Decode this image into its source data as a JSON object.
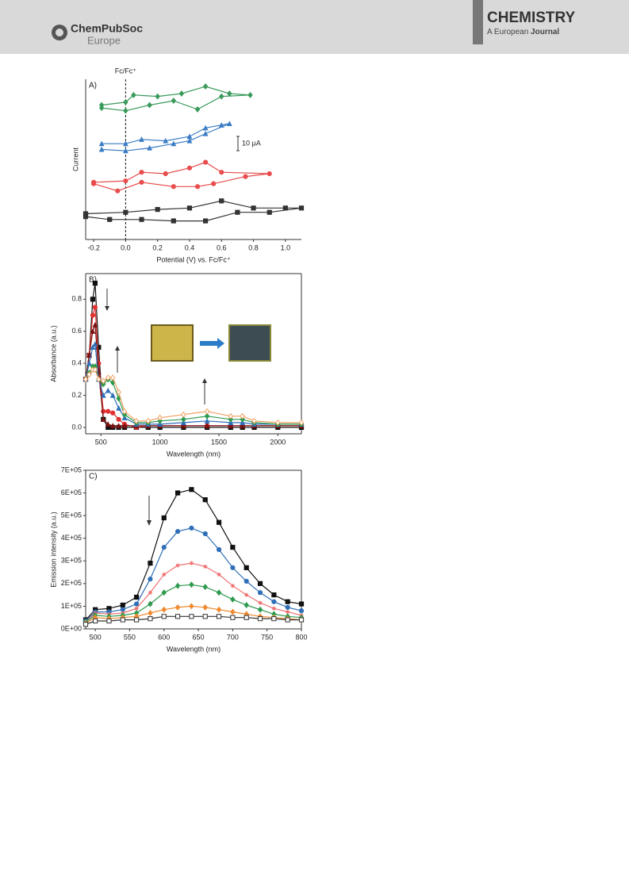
{
  "header": {
    "society": "ChemPubSoc",
    "region": "Europe",
    "journal": "CHEMISTRY",
    "tagline_a": "A European",
    "tagline_b": "Journal"
  },
  "chart_data": [
    {
      "type": "line",
      "label": "A)",
      "xlabel": "Potential (V) vs. Fc/Fc⁺",
      "ylabel": "Current",
      "xlim": [
        -0.25,
        1.1
      ],
      "xticks": [
        -0.2,
        {
          "value": 0,
          "label": "0.0"
        },
        0.2,
        0.4,
        0.6,
        0.8,
        {
          "value": 1,
          "label": "1.0"
        }
      ],
      "ylim": [
        0,
        112
      ],
      "ref_line": {
        "value": 0,
        "label": "Fc/Fc⁺"
      },
      "scale_bar": {
        "value": 10,
        "label": "10 μA"
      },
      "series": [
        {
          "color": "#3a9a5c",
          "marker": "diamond",
          "x": [
            -0.15,
            0.0,
            0.05,
            0.2,
            0.35,
            0.5,
            0.65,
            0.78,
            0.6,
            0.45,
            0.3,
            0.15,
            0.0,
            -0.15
          ],
          "values": [
            94,
            96,
            101,
            100,
            102,
            107,
            102,
            101,
            100,
            91,
            97,
            94,
            90,
            92
          ]
        },
        {
          "color": "#3a7cc4",
          "marker": "triangle",
          "x": [
            -0.15,
            0.0,
            0.1,
            0.25,
            0.4,
            0.5,
            0.6,
            0.65,
            0.5,
            0.4,
            0.3,
            0.15,
            0.0,
            -0.15
          ],
          "values": [
            67,
            67,
            70,
            69,
            72,
            78,
            80,
            81,
            74,
            69,
            67,
            64,
            62,
            63
          ]
        },
        {
          "color": "#e84c4c",
          "marker": "circle",
          "x": [
            -0.2,
            0.0,
            0.1,
            0.25,
            0.4,
            0.5,
            0.6,
            0.9,
            0.75,
            0.55,
            0.45,
            0.3,
            0.1,
            -0.05,
            -0.2
          ],
          "values": [
            40,
            41,
            47,
            46,
            50,
            54,
            47,
            46,
            44,
            39,
            37,
            37,
            40,
            34,
            39
          ]
        },
        {
          "color": "#333333",
          "marker": "square",
          "x": [
            -0.25,
            0.0,
            0.2,
            0.4,
            0.6,
            0.8,
            1.0,
            1.1,
            0.9,
            0.7,
            0.5,
            0.3,
            0.1,
            -0.1,
            -0.25
          ],
          "values": [
            18,
            19,
            21,
            22,
            27,
            22,
            22,
            22,
            19,
            19,
            13,
            13,
            14,
            14,
            16
          ]
        }
      ]
    },
    {
      "type": "line",
      "label": "B)",
      "xlabel": "Wavelength (nm)",
      "ylabel": "Absorbance (a.u.)",
      "xlim": [
        370,
        2200
      ],
      "xticks": [
        500,
        1000,
        1500,
        2000
      ],
      "ylim": [
        -0.04,
        0.96
      ],
      "yticks": [
        {
          "value": 0,
          "label": "0.0"
        },
        0.2,
        0.4,
        0.6,
        0.8
      ],
      "x": [
        370,
        400,
        430,
        450,
        480,
        520,
        560,
        600,
        650,
        700,
        800,
        900,
        1000,
        1200,
        1400,
        1600,
        1700,
        1800,
        2000,
        2200
      ],
      "series": [
        {
          "color": "#111111",
          "marker": "square",
          "values": [
            0.3,
            0.45,
            0.8,
            0.9,
            0.5,
            0.05,
            0,
            0,
            0,
            0,
            0,
            0,
            0,
            0,
            0,
            0,
            0,
            0,
            0,
            0
          ]
        },
        {
          "color": "#e03030",
          "marker": "circle",
          "values": [
            0.3,
            0.45,
            0.7,
            0.75,
            0.4,
            0.1,
            0.1,
            0.09,
            0.05,
            0.02,
            0,
            0.01,
            0.01,
            0.01,
            0.01,
            0.01,
            0.01,
            0.01,
            0.01,
            0.01
          ]
        },
        {
          "color": "#7a1010",
          "marker": "triangle",
          "values": [
            0.3,
            0.45,
            0.6,
            0.64,
            0.35,
            0.05,
            0.02,
            0.01,
            0.01,
            0.01,
            0.01,
            0.01,
            0.01,
            0.01,
            0.01,
            0.01,
            0.01,
            0.01,
            0.01,
            0.01
          ]
        },
        {
          "color": "#2f6fb8",
          "marker": "triangle",
          "values": [
            0.3,
            0.4,
            0.5,
            0.52,
            0.3,
            0.2,
            0.23,
            0.2,
            0.12,
            0.06,
            0.02,
            0.02,
            0.02,
            0.03,
            0.04,
            0.03,
            0.03,
            0.02,
            0.02,
            0.02
          ]
        },
        {
          "color": "#2e9a4e",
          "marker": "diamond",
          "values": [
            0.3,
            0.34,
            0.38,
            0.38,
            0.3,
            0.27,
            0.3,
            0.28,
            0.18,
            0.08,
            0.03,
            0.03,
            0.04,
            0.05,
            0.07,
            0.05,
            0.05,
            0.03,
            0.02,
            0.02
          ]
        },
        {
          "color": "#f0a060",
          "marker": "open-diamond",
          "values": [
            0.3,
            0.33,
            0.36,
            0.36,
            0.3,
            0.29,
            0.31,
            0.31,
            0.22,
            0.1,
            0.04,
            0.04,
            0.06,
            0.08,
            0.1,
            0.07,
            0.07,
            0.04,
            0.03,
            0.03
          ]
        }
      ]
    },
    {
      "type": "line",
      "label": "C)",
      "xlabel": "Wavelength (nm)",
      "ylabel": "Emission intensity (a.u.)",
      "xlim": [
        486,
        800
      ],
      "xticks": [
        500,
        550,
        600,
        650,
        700,
        750,
        800
      ],
      "ylim": [
        0,
        700000
      ],
      "yticks": [
        {
          "value": 0,
          "label": "0E+00"
        },
        {
          "value": 100000,
          "label": "1E+05"
        },
        {
          "value": 200000,
          "label": "2E+05"
        },
        {
          "value": 300000,
          "label": "3E+05"
        },
        {
          "value": 400000,
          "label": "4E+05"
        },
        {
          "value": 500000,
          "label": "5E+05"
        },
        {
          "value": 600000,
          "label": "6E+05"
        },
        {
          "value": 700000,
          "label": "7E+05"
        }
      ],
      "x": [
        486,
        500,
        520,
        540,
        560,
        580,
        600,
        620,
        640,
        660,
        680,
        700,
        720,
        740,
        760,
        780,
        800
      ],
      "series": [
        {
          "color": "#111111",
          "marker": "square",
          "values": [
            40000,
            85000,
            90000,
            105000,
            140000,
            290000,
            490000,
            600000,
            615000,
            570000,
            470000,
            360000,
            270000,
            200000,
            150000,
            120000,
            110000
          ]
        },
        {
          "color": "#2f6fb8",
          "marker": "circle",
          "values": [
            35000,
            75000,
            75000,
            85000,
            110000,
            220000,
            360000,
            430000,
            445000,
            420000,
            350000,
            270000,
            210000,
            160000,
            120000,
            95000,
            80000
          ]
        },
        {
          "color": "#f07070",
          "marker": "star",
          "values": [
            30000,
            70000,
            65000,
            70000,
            90000,
            160000,
            240000,
            280000,
            290000,
            275000,
            240000,
            190000,
            150000,
            115000,
            90000,
            75000,
            60000
          ]
        },
        {
          "color": "#2e9a4e",
          "marker": "diamond",
          "values": [
            30000,
            60000,
            55000,
            60000,
            70000,
            110000,
            160000,
            190000,
            195000,
            185000,
            160000,
            130000,
            105000,
            85000,
            65000,
            55000,
            50000
          ]
        },
        {
          "color": "#f08a30",
          "marker": "diamond",
          "values": [
            25000,
            50000,
            45000,
            50000,
            55000,
            70000,
            85000,
            95000,
            100000,
            95000,
            85000,
            75000,
            65000,
            55000,
            50000,
            45000,
            40000
          ]
        },
        {
          "color": "#333333",
          "marker": "open-square",
          "values": [
            20000,
            35000,
            35000,
            40000,
            40000,
            45000,
            55000,
            55000,
            55000,
            55000,
            55000,
            50000,
            50000,
            45000,
            45000,
            40000,
            40000
          ]
        }
      ]
    }
  ]
}
